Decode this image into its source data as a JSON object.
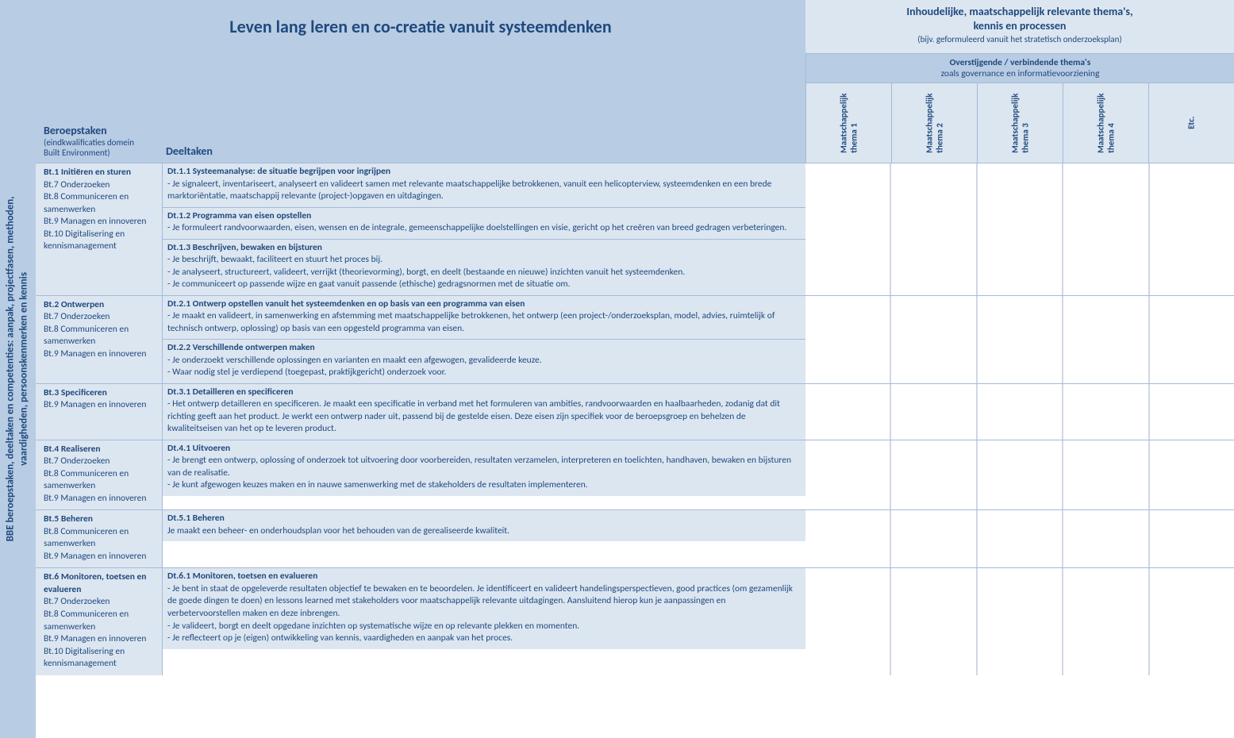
{
  "colors": {
    "primary_text": "#1f497d",
    "bg_mid": "#b8cce4",
    "bg_light": "#dce6f1",
    "border": "#a5bad6",
    "white": "#ffffff"
  },
  "side_label_line1": "BBE beroepstaken, deeltaken en competenties: aanpak, projectfasen, methoden,",
  "side_label_line2": "vaardigheden, persoonskenmerken en kennis",
  "main_title": "Leven lang leren en co-creatie vanuit systeemdenken",
  "top_right_title_line1": "Inhoudelijke, maatschappelijk relevante thema's,",
  "top_right_title_line2": "kennis en processen",
  "top_right_sub": "(bijv. geformuleerd vanuit het stratetisch onderzoeksplan)",
  "overarching_line1": "Overstijgende / verbindende thema's",
  "overarching_line2": "zoals governance en informatievoorziening",
  "bt_header_title": "Beroepstaken",
  "bt_header_sub1": "(eindkwalificaties domein",
  "bt_header_sub2": "Built Environment)",
  "dt_header": "Deeltaken",
  "theme_cols": [
    "Maatschappelijk\nthema 1",
    "Maatschappelijk\nthema 2",
    "Maatschappelijk\nthema 3",
    "Maatschappelijk\nthema 4",
    "Etc."
  ],
  "groups": [
    {
      "title": "Bt.1 Initiëren en sturen",
      "subs": [
        "Bt.7 Onderzoeken",
        "Bt.8 Communiceren en samenwerken",
        "Bt.9 Managen en innoveren",
        "Bt.10 Digitalisering en kennismanagement"
      ],
      "deeltaken": [
        {
          "title": "Dt.1.1 Systeemanalyse: de situatie begrijpen voor ingrijpen",
          "lines": [
            "- Je signaleert, inventariseert, analyseert en valideert samen met relevante maatschappelijke betrokkenen, vanuit een helicopterview, systeemdenken en een brede marktoriëntatie, maatschappij relevante (project-)opgaven en uitdagingen."
          ]
        },
        {
          "title": "Dt.1.2 Programma van eisen opstellen",
          "lines": [
            "- Je formuleert randvoorwaarden, eisen, wensen en de integrale, gemeenschappelijke doelstellingen en visie, gericht op het creëren van breed gedragen verbeteringen."
          ]
        },
        {
          "title": "Dt.1.3 Beschrijven, bewaken en bijsturen",
          "lines": [
            "- Je beschrijft, bewaakt, faciliteert en stuurt het proces bij.",
            "- Je analyseert, structureert, valideert, verrijkt (theorievorming), borgt, en deelt (bestaande en nieuwe) inzichten vanuit het systeemdenken.",
            "- Je communiceert op passende wijze en gaat vanuit passende (ethische) gedragsnormen met de situatie om."
          ]
        }
      ]
    },
    {
      "title": "Bt.2 Ontwerpen",
      "subs": [
        "Bt.7 Onderzoeken",
        "Bt.8 Communiceren en samenwerken",
        "Bt.9 Managen en innoveren"
      ],
      "deeltaken": [
        {
          "title": "Dt.2.1 Ontwerp opstellen vanuit het systeemdenken en op basis van een programma van eisen",
          "lines": [
            "- Je maakt en valideert, in samenwerking en afstemming met maatschappelijke betrokkenen, het ontwerp (een project-/onderzoeksplan, model, advies, ruimtelijk of technisch ontwerp, oplossing) op basis van een opgesteld programma van eisen."
          ]
        },
        {
          "title": "Dt.2.2 Verschillende ontwerpen maken",
          "lines": [
            "- Je onderzoekt verschillende oplossingen en varianten en maakt een afgewogen, gevalideerde keuze.",
            "- Waar nodig stel je verdiepend (toegepast, praktijkgericht) onderzoek voor."
          ]
        }
      ]
    },
    {
      "title": "Bt.3 Specificeren",
      "subs": [
        "Bt.9 Managen en innoveren"
      ],
      "deeltaken": [
        {
          "title": "Dt.3.1 Detailleren en specificeren",
          "lines": [
            "- Het ontwerp detailleren en specificeren. Je maakt een specificatie in verband met het formuleren van ambities, randvoorwaarden en haalbaarheden, zodanig dat dit richting geeft aan het product. Je werkt een ontwerp nader uit, passend bij de gestelde eisen. Deze eisen zijn specifiek voor de beroepsgroep en behelzen de kwaliteitseisen van het op te leveren product."
          ]
        }
      ]
    },
    {
      "title": "Bt.4 Realiseren",
      "subs": [
        "Bt.7 Onderzoeken",
        "Bt.8 Communiceren en samenwerken",
        "Bt.9 Managen en innoveren"
      ],
      "deeltaken": [
        {
          "title": "Dt.4.1 Uitvoeren",
          "lines": [
            "- Je brengt een ontwerp, oplossing of onderzoek tot uitvoering door voorbereiden, resultaten verzamelen, interpreteren en toelichten, handhaven, bewaken en bijsturen van de realisatie.",
            "- Je kunt afgewogen keuzes maken en in nauwe samenwerking met de stakeholders de resultaten implementeren."
          ]
        }
      ]
    },
    {
      "title": "Bt.5 Beheren",
      "subs": [
        "Bt.8 Communiceren en samenwerken",
        "Bt.9 Managen en innoveren"
      ],
      "deeltaken": [
        {
          "title": "Dt.5.1 Beheren",
          "lines": [
            "Je maakt een beheer- en onderhoudsplan voor het behouden van de gerealiseerde kwaliteit."
          ]
        }
      ]
    },
    {
      "title": "Bt.6 Monitoren, toetsen en evalueren",
      "subs": [
        "Bt.7 Onderzoeken",
        "Bt.8 Communiceren en samenwerken",
        "Bt.9 Managen en innoveren",
        "Bt.10 Digitalisering en kennismanagement"
      ],
      "deeltaken": [
        {
          "title": "Dt.6.1 Monitoren, toetsen en evalueren",
          "lines": [
            "- Je bent in staat de opgeleverde resultaten objectief te bewaken en te beoordelen. Je identificeert en valideert handelingsperspectieven, good practices (om gezamenlijk de goede dingen te doen) en lessons learned met stakeholders voor maatschappelijk relevante uitdagingen. Aansluitend hierop kun je aanpassingen en verbetervoorstellen maken en deze inbrengen.",
            "- Je valideert, borgt en deelt opgedane inzichten op systematische wijze en op relevante plekken en momenten.",
            "- Je reflecteert op je (eigen) ontwikkeling van kennis, vaardigheden en aanpak van het proces."
          ]
        }
      ]
    }
  ]
}
